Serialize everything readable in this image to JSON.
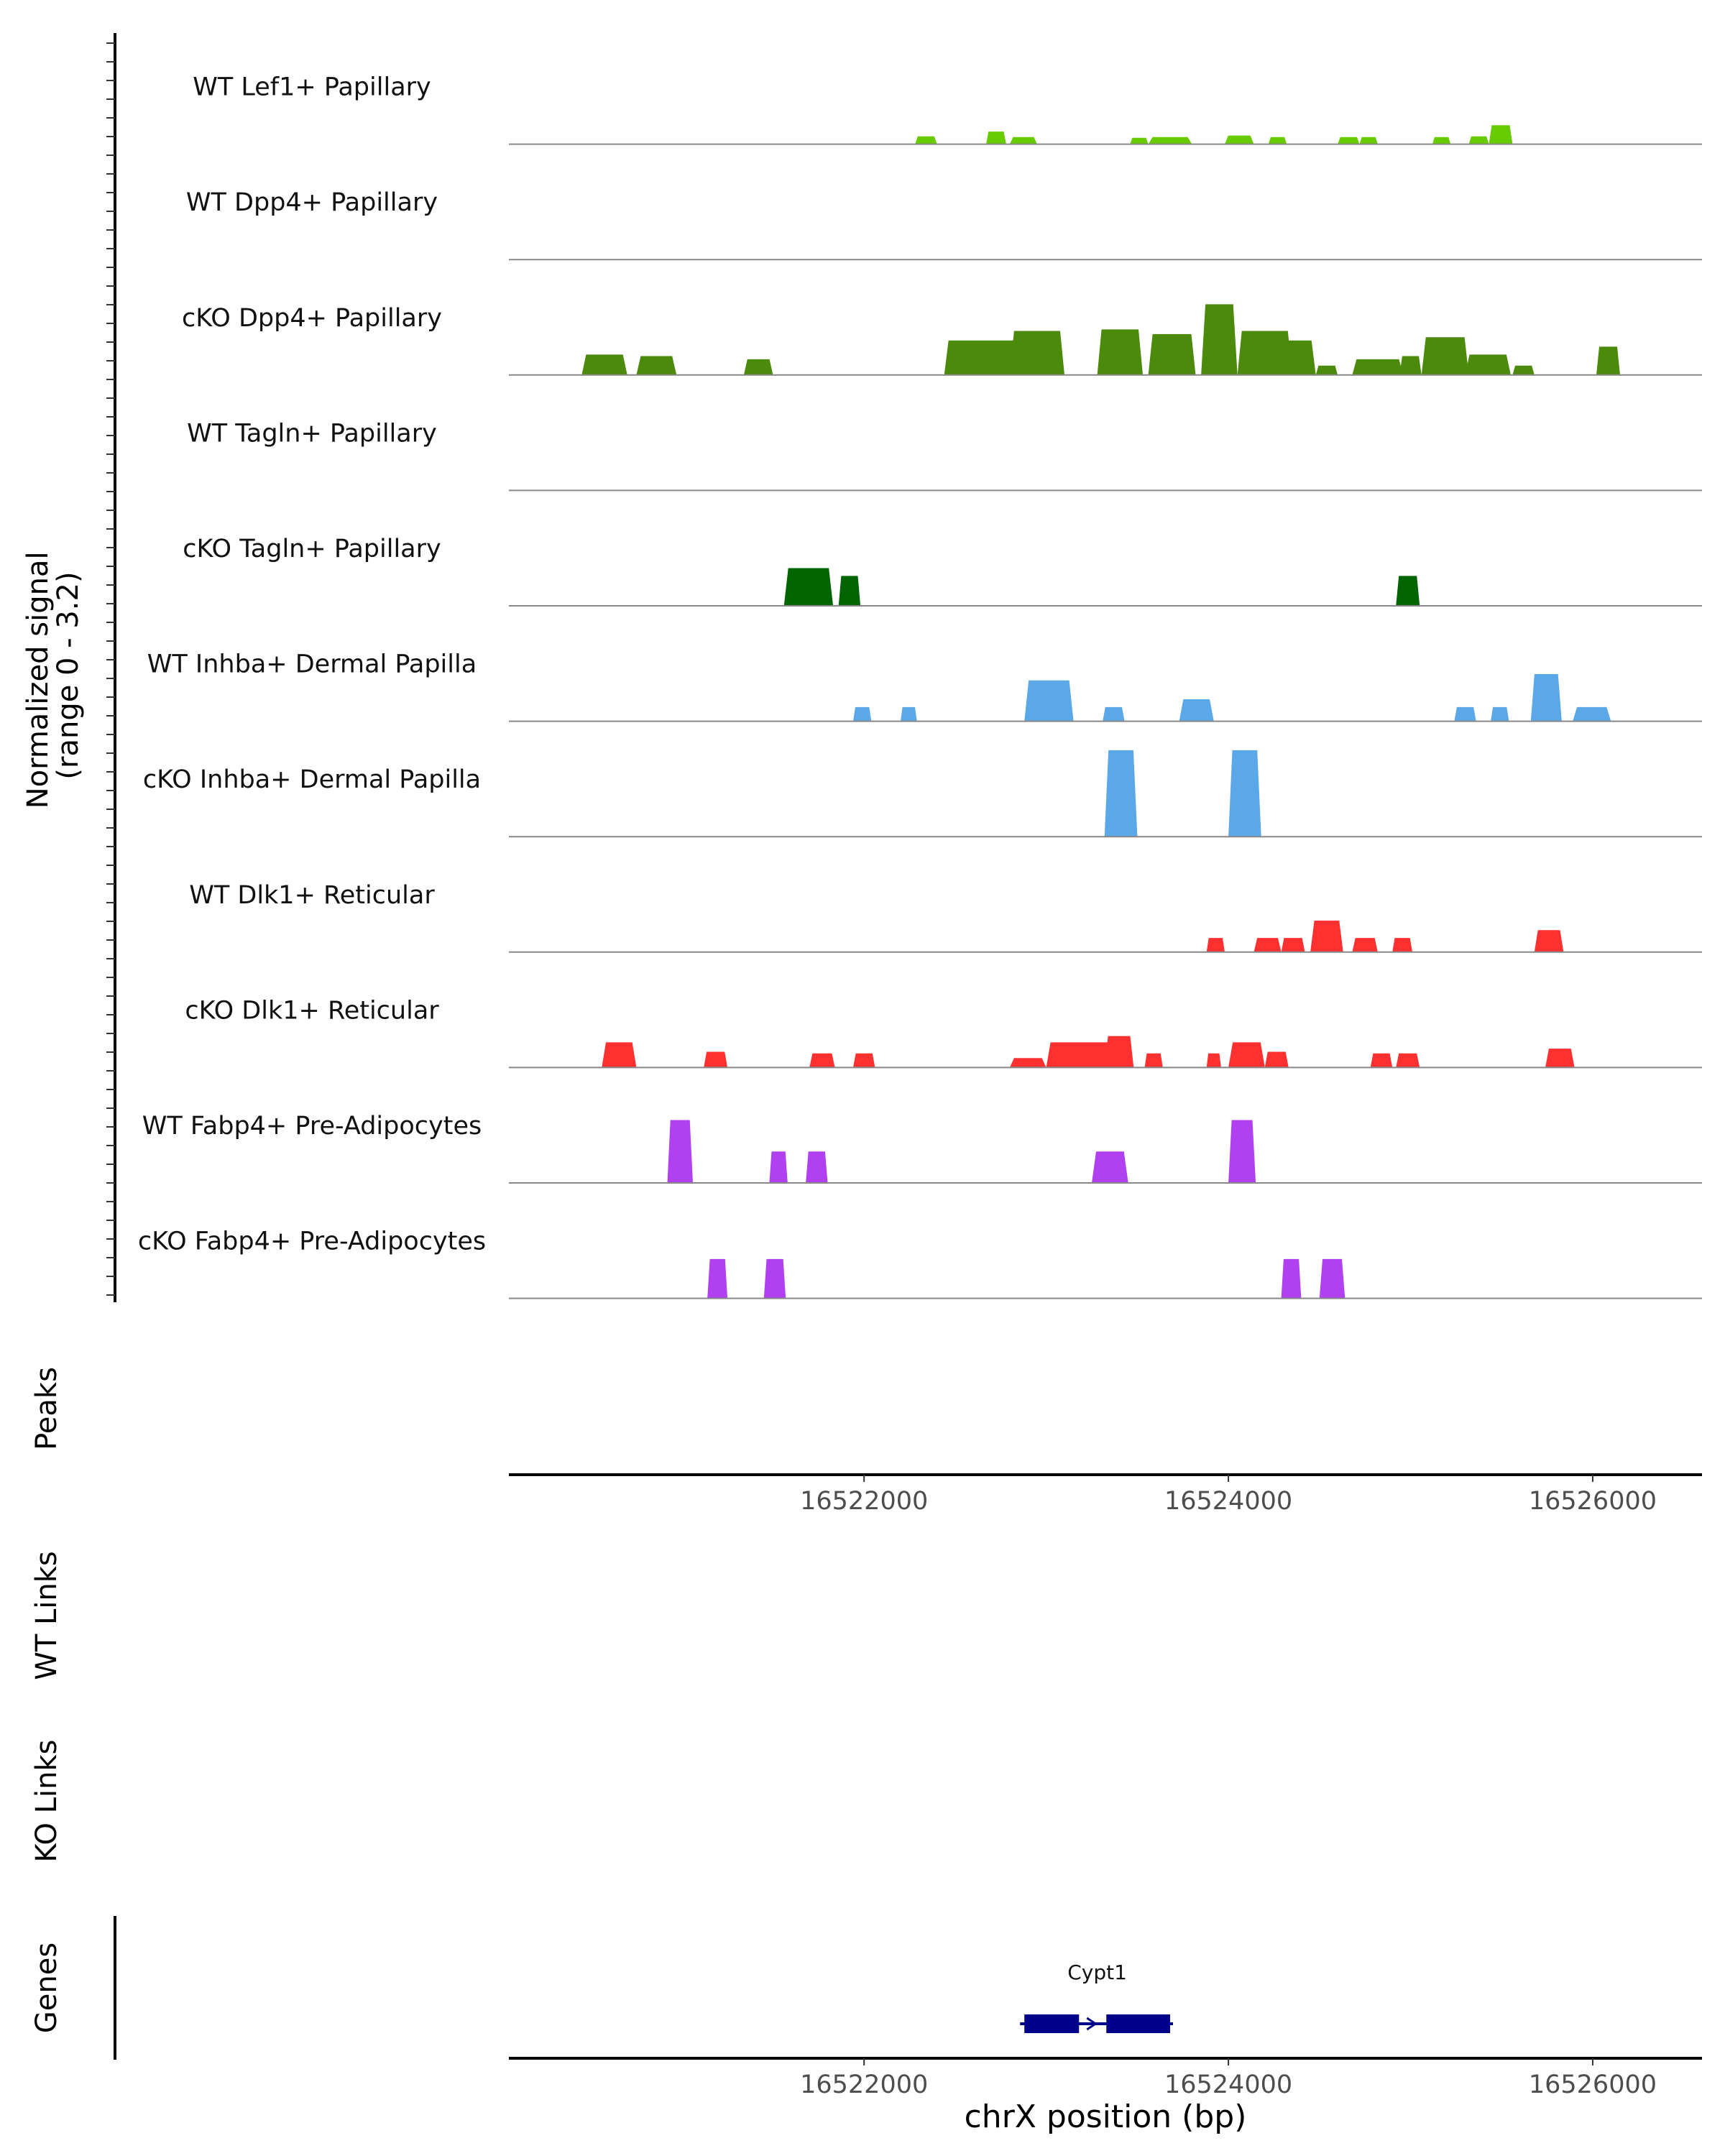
{
  "chart_data": {
    "type": "area",
    "title": "",
    "ylabel": "Normalized signal\n(range 0 - 3.2)",
    "ylabel_lines": [
      "Normalized signal",
      "(range 0 - 3.2)"
    ],
    "ylim": [
      0,
      3.2
    ],
    "xlabel": "chrX position (bp)",
    "xlim": [
      16520050,
      16526600
    ],
    "xticks": [
      16522000,
      16524000,
      16526000
    ],
    "xtick_labels": [
      "16522000",
      "16524000",
      "16526000"
    ],
    "series": [
      {
        "name": "WT Lef1+ Papillary",
        "color": "#66cc00",
        "peaks": [
          [
            16522280,
            16522400,
            0.5
          ],
          [
            16522670,
            16522780,
            0.8
          ],
          [
            16522800,
            16522950,
            0.45
          ],
          [
            16523460,
            16523560,
            0.4
          ],
          [
            16523560,
            16523800,
            0.45
          ],
          [
            16523980,
            16524140,
            0.55
          ],
          [
            16524220,
            16524320,
            0.45
          ],
          [
            16524600,
            16524720,
            0.45
          ],
          [
            16524720,
            16524820,
            0.45
          ],
          [
            16525120,
            16525220,
            0.45
          ],
          [
            16525320,
            16525430,
            0.5
          ],
          [
            16525430,
            16525560,
            1.2
          ]
        ]
      },
      {
        "name": "WT Dpp4+ Papillary",
        "color": "#4d8a00",
        "peaks": []
      },
      {
        "name": "cKO Dpp4+ Papillary",
        "color": "#4b8a0a",
        "peaks": [
          [
            16520450,
            16520700,
            1.3
          ],
          [
            16520750,
            16520970,
            1.2
          ],
          [
            16521340,
            16521500,
            1.0
          ],
          [
            16522440,
            16523000,
            2.2
          ],
          [
            16522800,
            16523100,
            2.8
          ],
          [
            16523280,
            16523530,
            2.9
          ],
          [
            16523560,
            16523820,
            2.6
          ],
          [
            16523850,
            16524050,
            4.5
          ],
          [
            16524050,
            16524350,
            2.8
          ],
          [
            16524200,
            16524480,
            2.2
          ],
          [
            16524480,
            16524600,
            0.6
          ],
          [
            16524680,
            16524960,
            1.0
          ],
          [
            16524940,
            16525060,
            1.2
          ],
          [
            16525060,
            16525320,
            2.4
          ],
          [
            16525300,
            16525550,
            1.3
          ],
          [
            16525560,
            16525680,
            0.6
          ],
          [
            16526020,
            16526150,
            1.8
          ]
        ]
      },
      {
        "name": "WT Tagln+ Papillary",
        "color": "#006400",
        "peaks": []
      },
      {
        "name": "cKO Tagln+ Papillary",
        "color": "#006400",
        "peaks": [
          [
            16521560,
            16521830,
            2.4
          ],
          [
            16521860,
            16521980,
            1.9
          ],
          [
            16524920,
            16525050,
            1.9
          ]
        ]
      },
      {
        "name": "WT Inhba+ Dermal Papilla",
        "color": "#5aa8e8",
        "peaks": [
          [
            16521940,
            16522040,
            0.9
          ],
          [
            16522200,
            16522290,
            0.9
          ],
          [
            16522880,
            16523150,
            2.6
          ],
          [
            16523310,
            16523430,
            0.9
          ],
          [
            16523730,
            16523920,
            1.4
          ],
          [
            16525240,
            16525360,
            0.9
          ],
          [
            16525440,
            16525540,
            0.9
          ],
          [
            16525660,
            16525830,
            3.0
          ],
          [
            16525890,
            16526100,
            0.9
          ]
        ]
      },
      {
        "name": "cKO Inhba+ Dermal Papilla",
        "color": "#5aa8e8",
        "peaks": [
          [
            16523320,
            16523500,
            5.5
          ],
          [
            16524000,
            16524180,
            5.5
          ]
        ]
      },
      {
        "name": "WT Dlk1+ Reticular",
        "color": "#ff3030",
        "peaks": [
          [
            16523880,
            16523980,
            0.9
          ],
          [
            16524140,
            16524290,
            0.9
          ],
          [
            16524290,
            16524420,
            0.9
          ],
          [
            16524450,
            16524630,
            2.0
          ],
          [
            16524680,
            16524820,
            0.9
          ],
          [
            16524900,
            16525010,
            0.9
          ],
          [
            16525680,
            16525840,
            1.4
          ]
        ]
      },
      {
        "name": "cKO Dlk1+ Reticular",
        "color": "#ff3030",
        "peaks": [
          [
            16520560,
            16520750,
            1.6
          ],
          [
            16521120,
            16521250,
            1.0
          ],
          [
            16521700,
            16521840,
            0.9
          ],
          [
            16521940,
            16522060,
            0.9
          ],
          [
            16522800,
            16523000,
            0.6
          ],
          [
            16523000,
            16523440,
            1.6
          ],
          [
            16523320,
            16523480,
            2.0
          ],
          [
            16523540,
            16523640,
            0.9
          ],
          [
            16523880,
            16523960,
            0.9
          ],
          [
            16524000,
            16524200,
            1.6
          ],
          [
            16524200,
            16524330,
            1.0
          ],
          [
            16524780,
            16524900,
            0.9
          ],
          [
            16524920,
            16525050,
            0.9
          ],
          [
            16525740,
            16525900,
            1.2
          ]
        ]
      },
      {
        "name": "WT Fabp4+ Pre-Adipocytes",
        "color": "#b040f0",
        "peaks": [
          [
            16520920,
            16521060,
            4.0
          ],
          [
            16521480,
            16521580,
            2.0
          ],
          [
            16521680,
            16521800,
            2.0
          ],
          [
            16523250,
            16523450,
            2.0
          ],
          [
            16524000,
            16524150,
            4.0
          ]
        ]
      },
      {
        "name": "cKO Fabp4+ Pre-Adipocytes",
        "color": "#b040f0",
        "peaks": [
          [
            16521140,
            16521250,
            2.5
          ],
          [
            16521450,
            16521570,
            2.5
          ],
          [
            16524290,
            16524400,
            2.5
          ],
          [
            16524500,
            16524640,
            2.5
          ]
        ]
      }
    ],
    "tracks": {
      "peaks_label": "Peaks",
      "wt_links_label": "WT Links",
      "ko_links_label": "KO Links",
      "genes_label": "Genes"
    },
    "gene": {
      "name": "Cypt1",
      "start": 16522880,
      "end": 16523680,
      "exons": [
        [
          16522880,
          16523180
        ],
        [
          16523330,
          16523680
        ]
      ],
      "color": "#00008b"
    }
  }
}
